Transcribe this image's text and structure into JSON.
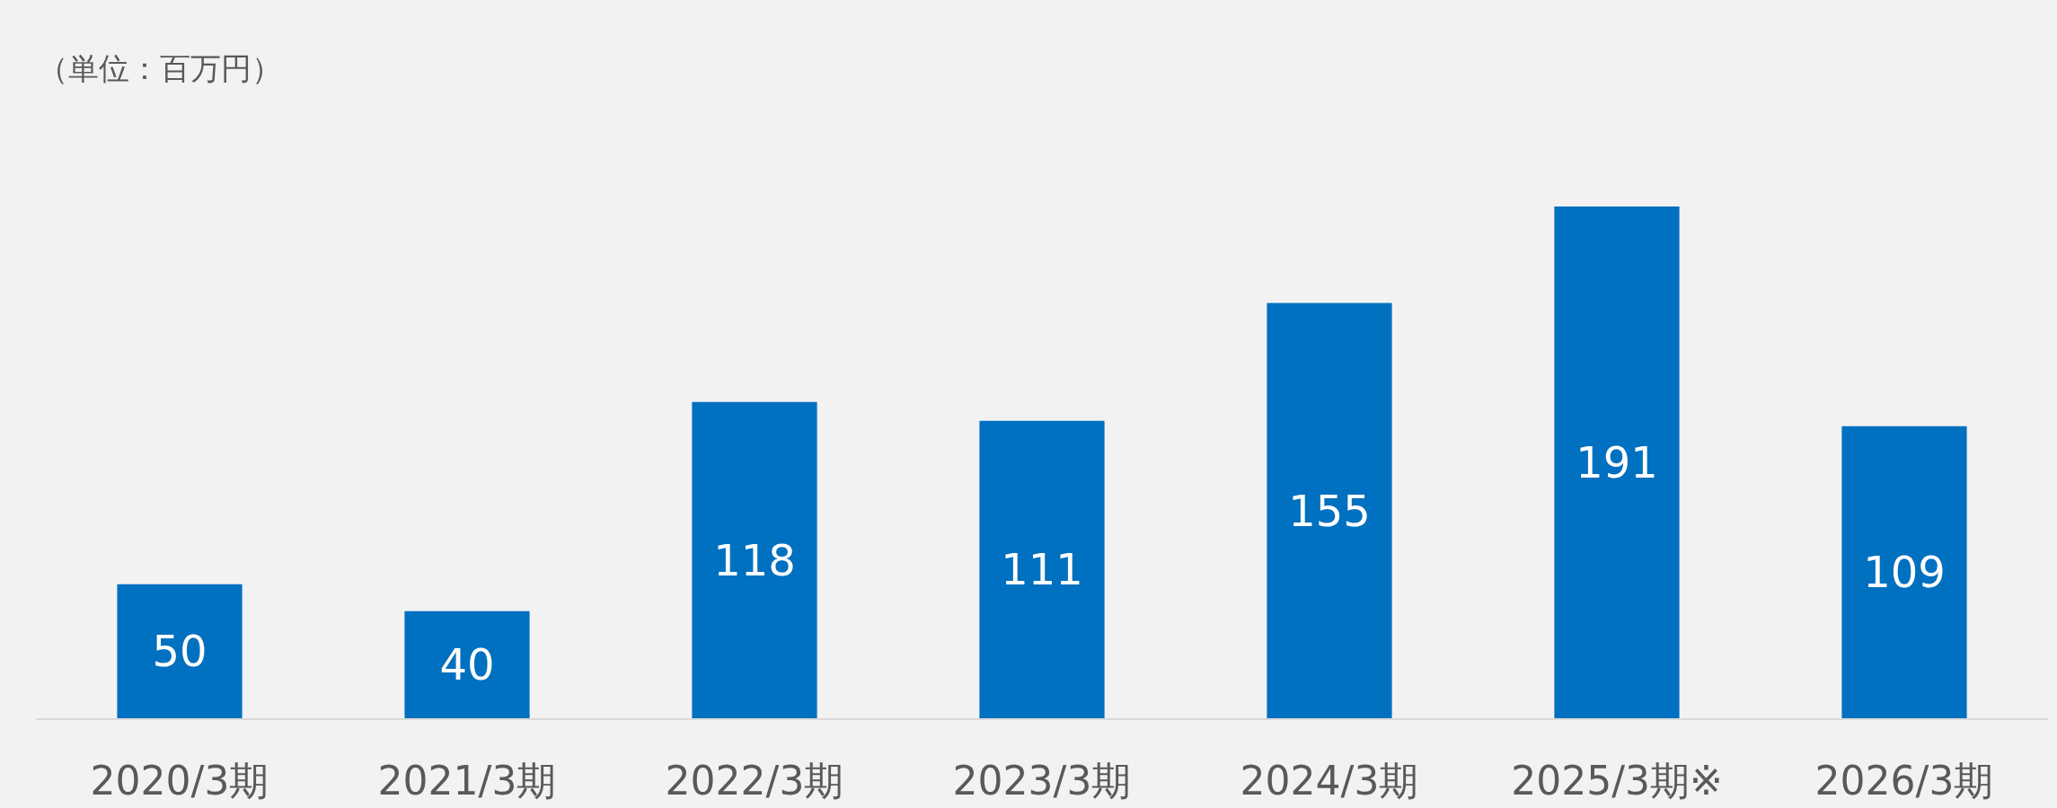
{
  "chart_data": {
    "type": "bar",
    "annotations": [
      "（単位：百万円）"
    ],
    "categories": [
      "2020/3期",
      "2021/3期",
      "2022/3期",
      "2023/3期",
      "2024/3期",
      "2025/3期※",
      "2026/3期"
    ],
    "values": [
      50,
      40,
      118,
      111,
      155,
      191,
      109
    ],
    "color": "#0070c0",
    "data_labels": true,
    "tick_labels": "x",
    "grid": false
  }
}
